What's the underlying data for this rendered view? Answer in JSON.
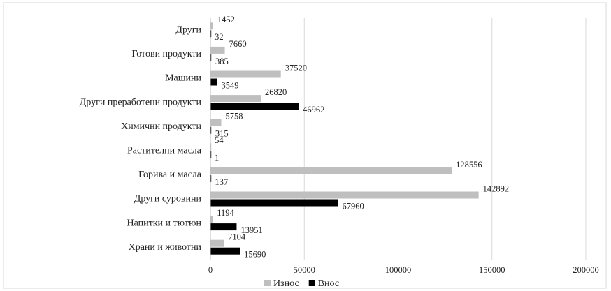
{
  "chart_data": {
    "type": "bar",
    "orientation": "horizontal",
    "categories": [
      "Други",
      "Готови продукти",
      "Машини",
      "Други преработени продукти",
      "Химични  продукти",
      "Растителни масла",
      "Горива и масла",
      "Други суровини",
      "Напитки и тютюн",
      "Храни и животни"
    ],
    "series": [
      {
        "name": "Износ",
        "color": "#bfbfbf",
        "values": [
          1452,
          7660,
          37520,
          26820,
          5758,
          54,
          128556,
          142892,
          1194,
          7104
        ]
      },
      {
        "name": "Внос",
        "color": "#000000",
        "values": [
          32,
          385,
          3549,
          46962,
          315,
          1,
          137,
          67960,
          13951,
          15690
        ]
      }
    ],
    "xlim": [
      0,
      200000
    ],
    "xticks": [
      0,
      50000,
      100000,
      150000,
      200000
    ],
    "grid": true,
    "legend": "bottom"
  }
}
